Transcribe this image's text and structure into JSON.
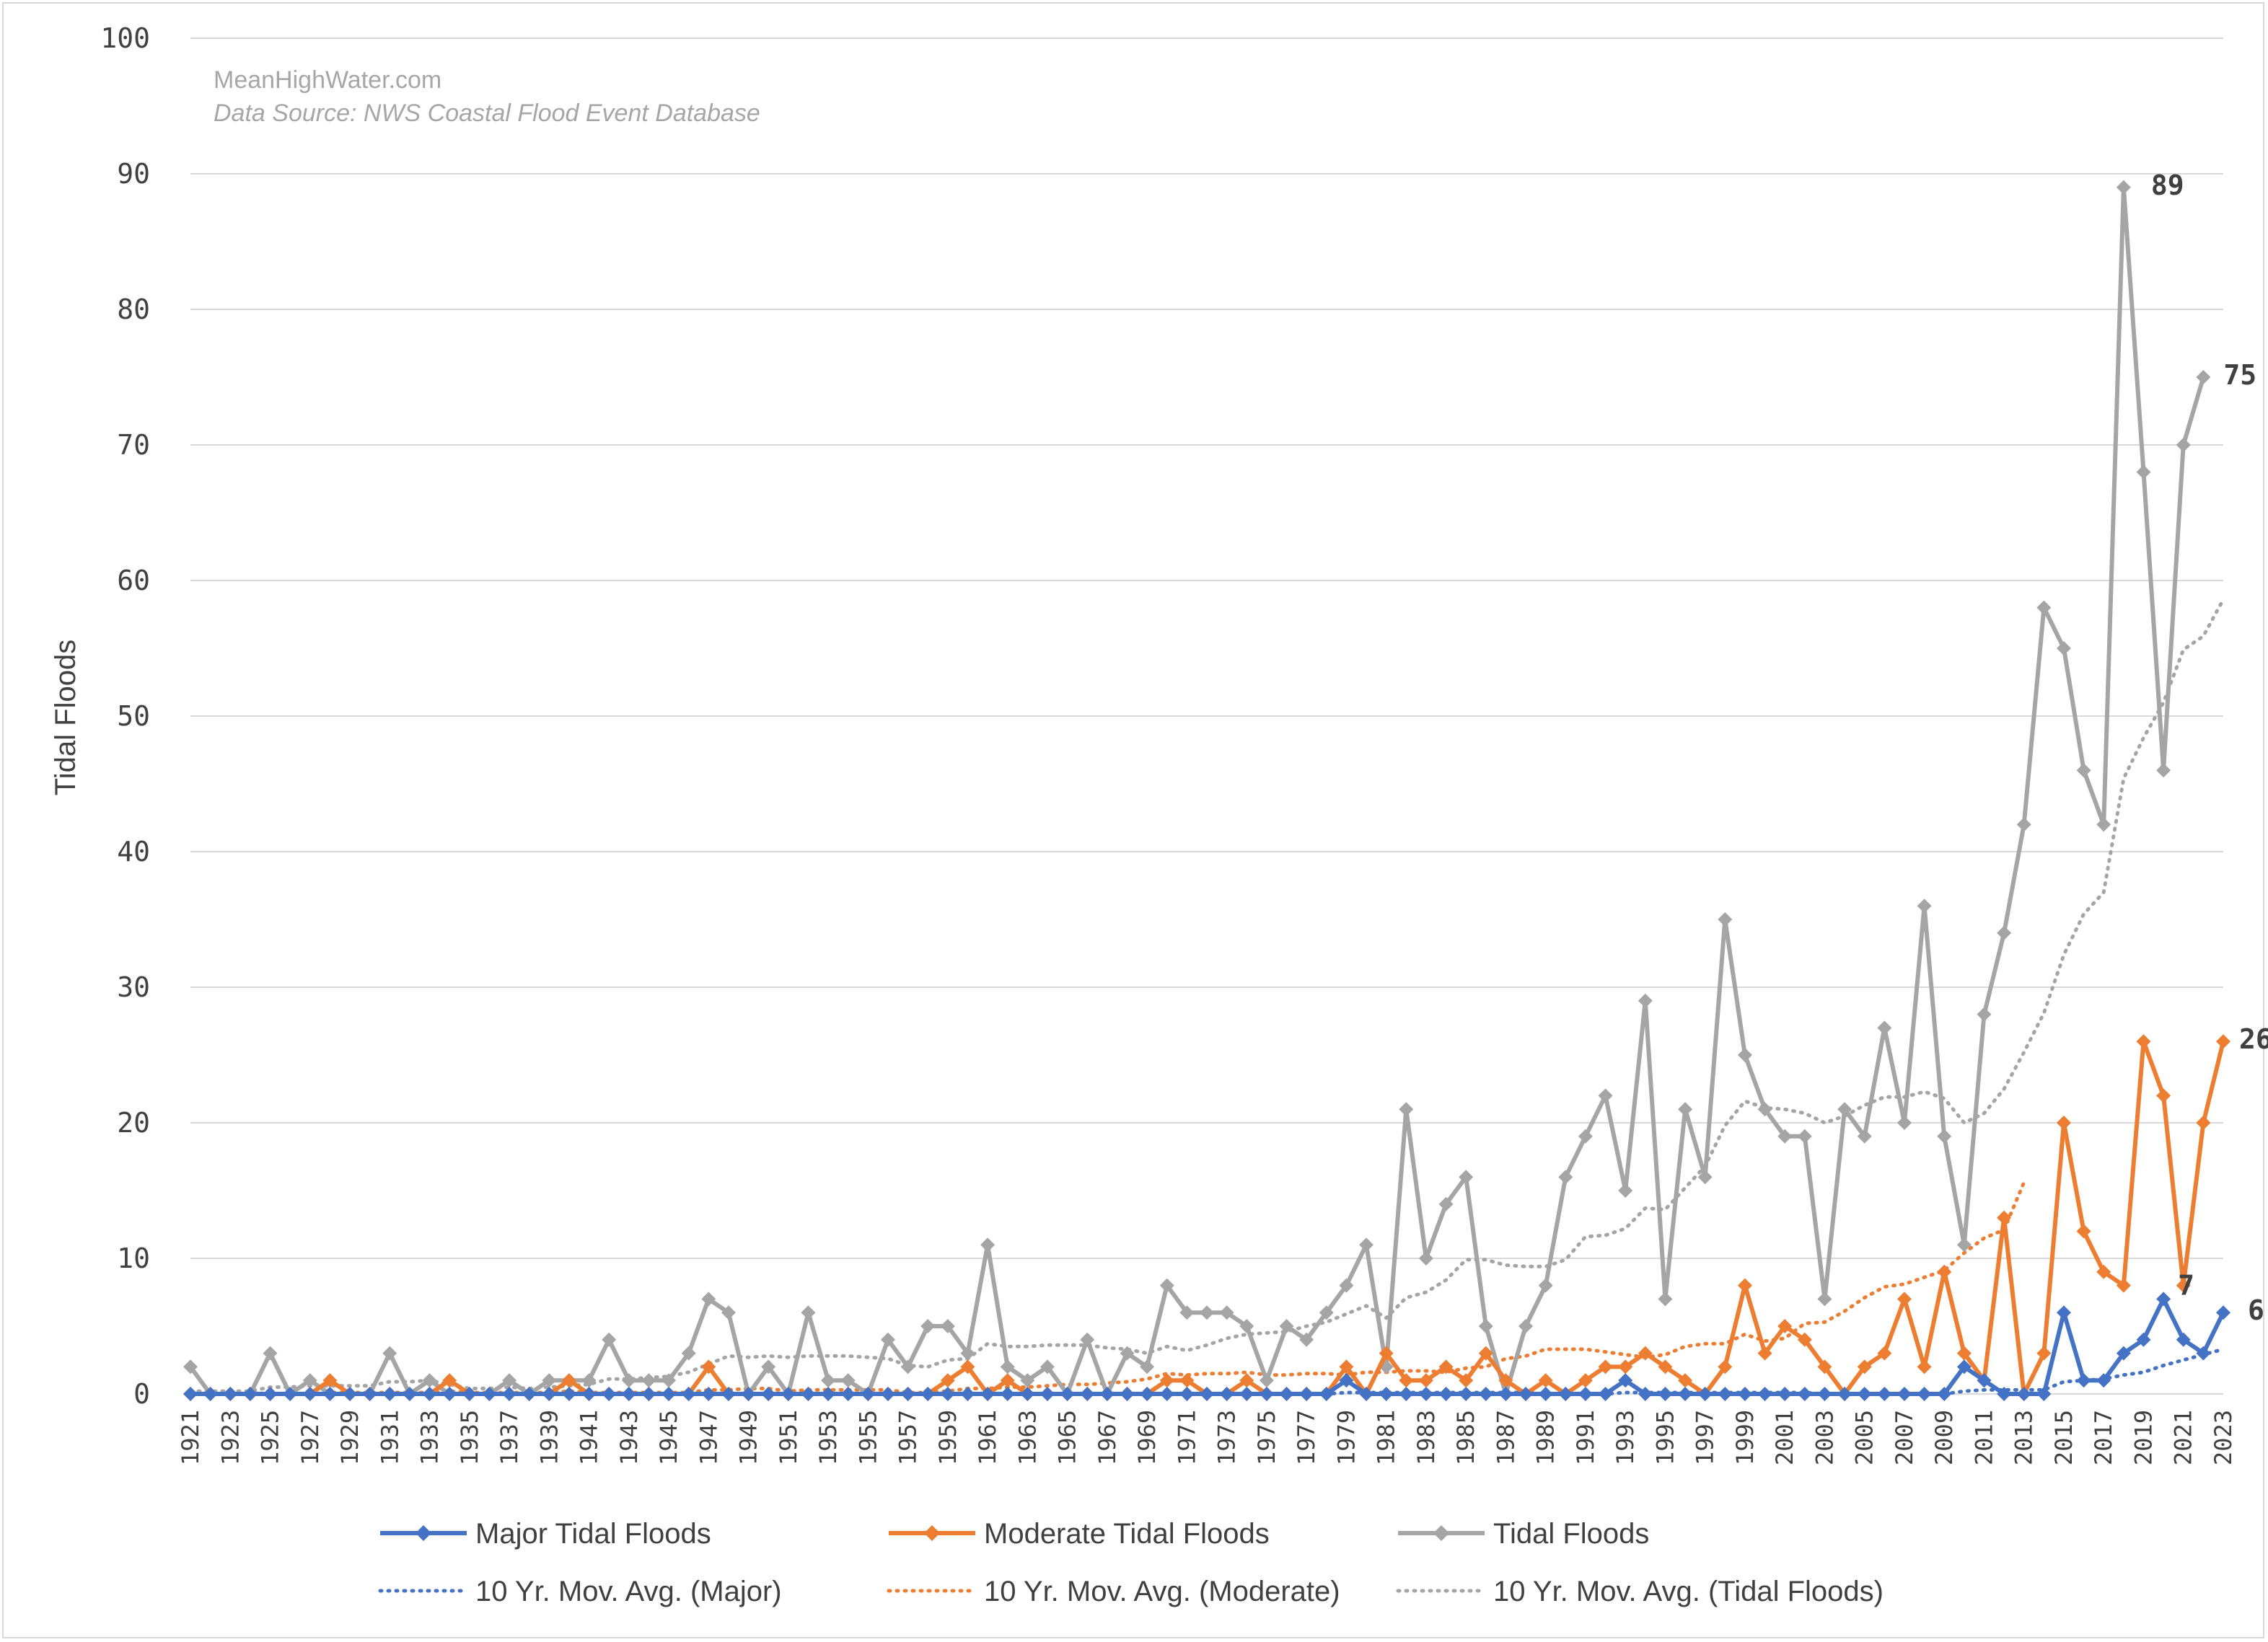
{
  "chart_data": {
    "type": "line",
    "watermark": "MeanHighWater.com",
    "source_note": "Data Source: NWS Coastal Flood Event Database",
    "ylabel": "Tidal Floods",
    "ylim": [
      0,
      100
    ],
    "yticks": [
      0,
      10,
      20,
      30,
      40,
      50,
      60,
      70,
      80,
      90,
      100
    ],
    "x_start": 1921,
    "x_end": 2023,
    "xtick_labels": [
      "1921",
      "1923",
      "1925",
      "1927",
      "1929",
      "1931",
      "1933",
      "1935",
      "1937",
      "1939",
      "1941",
      "1943",
      "1945",
      "1947",
      "1949",
      "1951",
      "1953",
      "1955",
      "1957",
      "1959",
      "1961",
      "1963",
      "1965",
      "1967",
      "1969",
      "1971",
      "1973",
      "1975",
      "1977",
      "1979",
      "1981",
      "1983",
      "1985",
      "1987",
      "1989",
      "1991",
      "1993",
      "1995",
      "1997",
      "1999",
      "2001",
      "2003",
      "2005",
      "2007",
      "2009",
      "2011",
      "2013",
      "2015",
      "2017",
      "2019",
      "2021",
      "2023"
    ],
    "grid": true,
    "legend_position": "bottom",
    "series": [
      {
        "name": "Major Tidal Floods",
        "color": "#4472c4",
        "style": "solid-diamond",
        "values": [
          0,
          0,
          0,
          0,
          0,
          0,
          0,
          0,
          0,
          0,
          0,
          0,
          0,
          0,
          0,
          0,
          0,
          0,
          0,
          0,
          0,
          0,
          0,
          0,
          0,
          0,
          0,
          0,
          0,
          0,
          0,
          0,
          0,
          0,
          0,
          0,
          0,
          0,
          0,
          0,
          0,
          0,
          0,
          0,
          0,
          0,
          0,
          0,
          0,
          0,
          0,
          0,
          0,
          0,
          0,
          0,
          0,
          0,
          1,
          0,
          0,
          0,
          0,
          0,
          0,
          0,
          0,
          0,
          0,
          0,
          0,
          0,
          1,
          0,
          0,
          0,
          0,
          0,
          0,
          0,
          0,
          0,
          0,
          0,
          0,
          0,
          0,
          0,
          0,
          2,
          1,
          0,
          0,
          0,
          6,
          1,
          1,
          3,
          4,
          7,
          4,
          3,
          6
        ]
      },
      {
        "name": "Moderate Tidal Floods",
        "color": "#ed7d31",
        "style": "solid-diamond",
        "values": [
          0,
          0,
          0,
          0,
          0,
          0,
          0,
          1,
          0,
          0,
          0,
          0,
          0,
          1,
          0,
          0,
          0,
          0,
          0,
          1,
          0,
          0,
          0,
          0,
          0,
          0,
          2,
          0,
          0,
          0,
          0,
          0,
          0,
          0,
          0,
          0,
          0,
          0,
          1,
          2,
          0,
          1,
          0,
          0,
          0,
          0,
          0,
          0,
          0,
          1,
          1,
          0,
          0,
          1,
          0,
          0,
          0,
          0,
          2,
          0,
          3,
          1,
          1,
          2,
          1,
          3,
          1,
          0,
          1,
          0,
          1,
          2,
          2,
          3,
          2,
          1,
          0,
          2,
          8,
          3,
          5,
          4,
          2,
          0,
          2,
          3,
          7,
          2,
          9,
          3,
          1,
          13,
          0,
          3,
          20,
          12,
          9,
          8,
          26,
          22,
          8,
          20,
          26
        ]
      },
      {
        "name": "Tidal Floods",
        "color": "#a5a5a5",
        "style": "solid-diamond",
        "values": [
          2,
          0,
          0,
          0,
          3,
          0,
          1,
          0,
          0,
          0,
          3,
          0,
          1,
          0,
          0,
          0,
          1,
          0,
          1,
          1,
          1,
          4,
          1,
          1,
          1,
          3,
          7,
          6,
          0,
          2,
          0,
          6,
          1,
          1,
          0,
          4,
          2,
          5,
          5,
          3,
          11,
          2,
          1,
          2,
          0,
          4,
          0,
          3,
          2,
          8,
          6,
          6,
          6,
          5,
          1,
          5,
          4,
          6,
          8,
          11,
          2,
          21,
          10,
          14,
          16,
          5,
          0,
          5,
          8,
          16,
          19,
          22,
          15,
          29,
          7,
          21,
          16,
          35,
          25,
          21,
          19,
          19,
          7,
          21,
          19,
          27,
          20,
          36,
          19,
          11,
          28,
          34,
          42,
          58,
          55,
          46,
          42,
          89,
          68,
          46,
          70,
          75
        ]
      },
      {
        "name": "10 Yr. Mov. Avg. (Major)",
        "color": "#4472c4",
        "style": "dotted",
        "values": [
          0,
          0,
          0,
          0,
          0,
          0,
          0,
          0,
          0,
          0,
          0,
          0,
          0,
          0,
          0,
          0,
          0,
          0,
          0,
          0,
          0,
          0,
          0,
          0,
          0,
          0,
          0,
          0,
          0,
          0,
          0,
          0,
          0,
          0,
          0,
          0,
          0,
          0,
          0,
          0,
          0,
          0,
          0,
          0,
          0,
          0,
          0,
          0,
          0,
          0,
          0,
          0,
          0,
          0,
          0,
          0,
          0,
          0,
          0.1,
          0.1,
          0.1,
          0.1,
          0.1,
          0.1,
          0.1,
          0.1,
          0.1,
          0.1,
          0,
          0,
          0,
          0,
          0.1,
          0.1,
          0.1,
          0.1,
          0.1,
          0.1,
          0.1,
          0.1,
          0.1,
          0.1,
          0,
          0,
          0,
          0,
          0,
          0,
          0,
          0.2,
          0.3,
          0.3,
          0.3,
          0.3,
          0.9,
          1,
          1.1,
          1.4,
          1.6,
          2.1,
          2.5,
          2.9,
          3.3
        ]
      },
      {
        "name": "10 Yr. Mov. Avg. (Moderate)",
        "color": "#ed7d31",
        "style": "dotted",
        "values": [
          0,
          0,
          0,
          0,
          0,
          0,
          0,
          0.1,
          0.1,
          0.1,
          0.1,
          0.1,
          0.1,
          0.2,
          0.1,
          0.1,
          0.1,
          0.1,
          0.1,
          0.2,
          0.1,
          0.1,
          0.1,
          0.1,
          0.1,
          0.1,
          0.3,
          0.3,
          0.4,
          0.4,
          0.2,
          0.3,
          0.3,
          0.3,
          0.3,
          0.3,
          0.1,
          0.1,
          0.2,
          0.4,
          0.4,
          0.5,
          0.5,
          0.6,
          0.7,
          0.7,
          0.8,
          0.9,
          1.1,
          1.5,
          1.4,
          1.5,
          1.5,
          1.6,
          1.4,
          1.4,
          1.5,
          1.5,
          1.4,
          1.6,
          1.6,
          1.7,
          1.7,
          1.6,
          1.9,
          2,
          2.6,
          2.8,
          3.3,
          3.3,
          3.3,
          3.1,
          2.9,
          2.7,
          2.9,
          3.5,
          3.7,
          3.7,
          4.4,
          3.9,
          4.1,
          5.2,
          5.3,
          6.1,
          7.1,
          7.9,
          8.1,
          8.6,
          9.1,
          10.4,
          11.5,
          12.1,
          15.6
        ]
      },
      {
        "name": "10 Yr. Mov. Avg. (Tidal Floods)",
        "color": "#a5a5a5",
        "style": "dotted",
        "values": [
          0.2,
          0.2,
          0.2,
          0.2,
          0.5,
          0.5,
          0.6,
          0.6,
          0.6,
          0.6,
          0.9,
          0.9,
          1,
          0.7,
          0.4,
          0.4,
          0.5,
          0.4,
          0.5,
          0.6,
          0.7,
          1.1,
          1.1,
          1.2,
          1.3,
          1.6,
          2.2,
          2.8,
          2.7,
          2.8,
          2.7,
          2.8,
          2.8,
          2.8,
          2.7,
          2.6,
          2.1,
          2,
          2.5,
          2.6,
          3.7,
          3.5,
          3.5,
          3.6,
          3.6,
          3.6,
          3.4,
          3.3,
          3,
          3.5,
          3.2,
          3.6,
          4.1,
          4.4,
          4.5,
          4.6,
          5,
          5.3,
          5.9,
          6.5,
          5.6,
          7.1,
          7.5,
          8.4,
          9.9,
          9.9,
          9.5,
          9.4,
          9.4,
          9.9,
          11.6,
          11.7,
          12.2,
          13.7,
          13.6,
          15.2,
          16.8,
          19.8,
          21.6,
          21.1,
          21,
          20.7,
          20,
          20.5,
          21.3,
          21.9,
          21.9,
          22.3,
          21.8,
          20,
          20.7,
          22.5,
          25.2,
          28.1,
          32.4,
          35.4,
          37,
          45.4,
          48.4,
          51,
          54.9,
          55.9,
          58.6
        ]
      }
    ],
    "data_labels": [
      {
        "series": "Tidal Floods",
        "x": 2018,
        "value": 89,
        "text": "89"
      },
      {
        "series": "Tidal Floods",
        "x": 2022,
        "value": 75,
        "text": "75"
      },
      {
        "series": "Moderate Tidal Floods",
        "x": 2023,
        "value": 26,
        "text": "26"
      },
      {
        "series": "Major Tidal Floods",
        "x": 2020,
        "value": 7,
        "text": "7"
      },
      {
        "series": "Major Tidal Floods",
        "x": 2023,
        "value": 6,
        "text": "6"
      }
    ]
  }
}
